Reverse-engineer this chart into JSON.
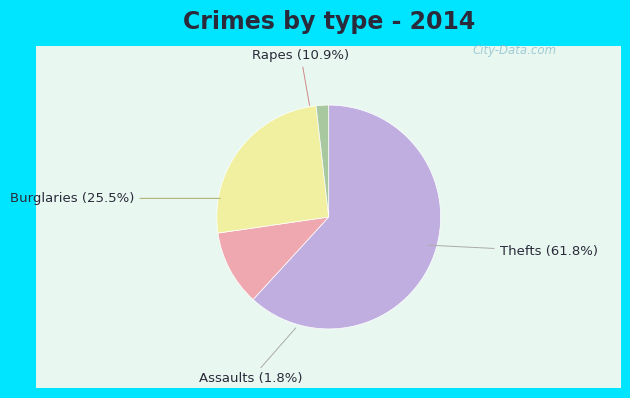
{
  "title": "Crimes by type - 2014",
  "slices": [
    {
      "label": "Thefts (61.8%)",
      "value": 61.8,
      "color": "#c0aee0"
    },
    {
      "label": "Rapes (10.9%)",
      "value": 10.9,
      "color": "#f0a8b0"
    },
    {
      "label": "Burglaries (25.5%)",
      "value": 25.5,
      "color": "#f0f0a0"
    },
    {
      "label": "Assaults (1.8%)",
      "value": 1.8,
      "color": "#a8c8a0"
    }
  ],
  "bg_color_outer": "#00e5ff",
  "bg_color_inner_top": "#e8f8f0",
  "bg_color_inner_bottom": "#d0eee0",
  "title_fontsize": 17,
  "label_fontsize": 9.5,
  "watermark": "City-Data.com",
  "startangle": 90,
  "title_color": "#2a2a3a",
  "label_color": "#2a2a3a"
}
